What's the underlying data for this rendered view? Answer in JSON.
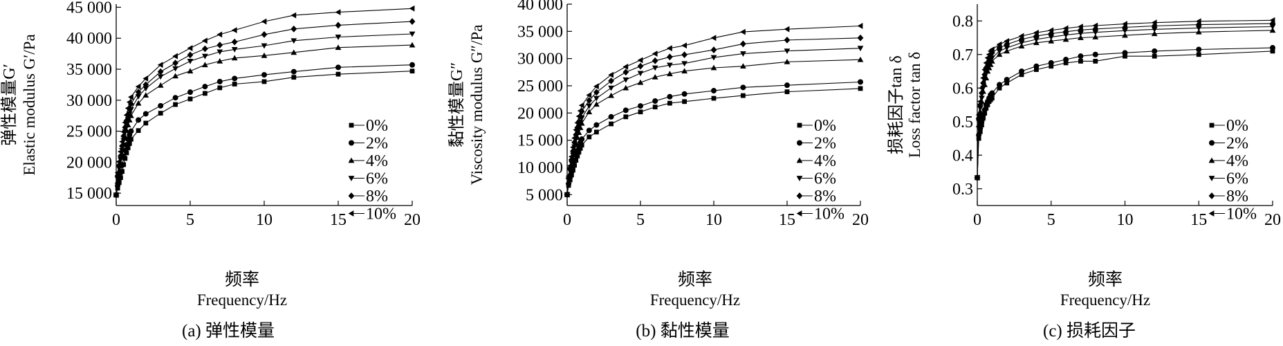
{
  "legend_labels": [
    "0%",
    "2%",
    "4%",
    "6%",
    "8%",
    "10%"
  ],
  "marker_names": [
    "square",
    "circle",
    "triangle-up",
    "triangle-down",
    "diamond",
    "triangle-left"
  ],
  "x_ticks": [
    0,
    5,
    10,
    15,
    20
  ],
  "chart_data": [
    {
      "type": "line",
      "panel_label": "(a) 弹性模量",
      "ylabel_cn": "弹性模量G′",
      "ylabel_en": "Elastic modulus G′/Pa",
      "xlabel_cn": "频率",
      "xlabel_en": "Frequency/Hz",
      "xlim": [
        0,
        20
      ],
      "ylim": [
        13000,
        45500
      ],
      "y_ticks": [
        15000,
        20000,
        25000,
        30000,
        35000,
        40000,
        45000
      ],
      "y_tick_labels": [
        "15 000",
        "20 000",
        "25 000",
        "30 000",
        "35 000",
        "40 000",
        "45 000"
      ],
      "legend_position": "lower-right",
      "x": [
        0,
        0.1,
        0.2,
        0.3,
        0.4,
        0.5,
        0.6,
        0.7,
        0.8,
        0.9,
        1,
        1.5,
        2,
        3,
        4,
        5,
        6,
        7,
        8,
        10,
        12,
        15,
        20
      ],
      "series": [
        {
          "name": "0%",
          "values": [
            14700,
            15800,
            16700,
            17500,
            18500,
            19600,
            20600,
            21500,
            22300,
            23000,
            23700,
            25100,
            26300,
            27900,
            29300,
            30200,
            31100,
            32000,
            32600,
            33000,
            33700,
            34200,
            34700
          ]
        },
        {
          "name": "2%",
          "values": [
            14700,
            16200,
            17300,
            18300,
            19500,
            20800,
            21900,
            22800,
            23700,
            24400,
            25000,
            26800,
            27800,
            29100,
            30400,
            31300,
            32200,
            33000,
            33500,
            34100,
            34600,
            35300,
            35700
          ]
        },
        {
          "name": "4%",
          "values": [
            14700,
            16900,
            18500,
            19900,
            21300,
            22800,
            24100,
            25100,
            26000,
            26800,
            27500,
            29500,
            30800,
            32400,
            33900,
            34700,
            35700,
            36300,
            36800,
            37200,
            37700,
            38500,
            38900
          ]
        },
        {
          "name": "6%",
          "values": [
            14700,
            17300,
            19000,
            20400,
            21900,
            23500,
            24900,
            26000,
            26900,
            27800,
            28500,
            30600,
            31900,
            33800,
            35100,
            36300,
            37100,
            37800,
            38200,
            38800,
            39600,
            40200,
            40700
          ]
        },
        {
          "name": "8%",
          "values": [
            14700,
            17800,
            19500,
            21000,
            22600,
            24200,
            25600,
            26700,
            27700,
            28600,
            29400,
            31300,
            32500,
            34600,
            36000,
            37300,
            38300,
            38900,
            39400,
            40600,
            41500,
            42100,
            42700
          ]
        },
        {
          "name": "10%",
          "values": [
            14700,
            18300,
            20100,
            21700,
            23300,
            24900,
            26400,
            27600,
            28700,
            29700,
            30500,
            32200,
            33500,
            35700,
            37100,
            38400,
            39600,
            40600,
            41300,
            42700,
            43700,
            44200,
            44800
          ]
        }
      ]
    },
    {
      "type": "line",
      "panel_label": "(b) 黏性模量",
      "ylabel_cn": "黏性模量G″",
      "ylabel_en": "Viscosity modulus G″/Pa",
      "xlabel_cn": "频率",
      "xlabel_en": "Frequency/Hz",
      "xlim": [
        0,
        20
      ],
      "ylim": [
        3000,
        40000
      ],
      "y_ticks": [
        5000,
        10000,
        15000,
        20000,
        25000,
        30000,
        35000,
        40000
      ],
      "y_tick_labels": [
        "5 000",
        "10 000",
        "15 000",
        "20 000",
        "25 000",
        "30 000",
        "35 000",
        "40 000"
      ],
      "legend_position": "lower-right",
      "x": [
        0,
        0.1,
        0.2,
        0.3,
        0.4,
        0.5,
        0.6,
        0.7,
        0.8,
        0.9,
        1,
        1.5,
        2,
        3,
        4,
        5,
        6,
        7,
        8,
        10,
        12,
        15,
        20
      ],
      "series": [
        {
          "name": "0%",
          "values": [
            5000,
            6700,
            7700,
            8600,
            9500,
            10400,
            11300,
            12100,
            12800,
            13500,
            14100,
            15600,
            16500,
            18000,
            19300,
            20200,
            21100,
            21800,
            22100,
            22700,
            23200,
            23900,
            24500
          ]
        },
        {
          "name": "2%",
          "values": [
            5000,
            7000,
            8200,
            9200,
            10200,
            11300,
            12300,
            13100,
            13900,
            14600,
            15200,
            16800,
            17800,
            19300,
            20500,
            21300,
            22200,
            23000,
            23500,
            24100,
            24700,
            25100,
            25700
          ]
        },
        {
          "name": "4%",
          "values": [
            5000,
            7400,
            8900,
            10300,
            11700,
            13100,
            14400,
            15500,
            16400,
            17300,
            18100,
            20200,
            21600,
            23200,
            24600,
            25600,
            26600,
            27200,
            27700,
            28300,
            28600,
            29400,
            29800
          ]
        },
        {
          "name": "6%",
          "values": [
            5000,
            7700,
            9300,
            10800,
            12300,
            13800,
            15200,
            16400,
            17400,
            18300,
            19100,
            21300,
            22700,
            24600,
            26100,
            27300,
            28300,
            28800,
            29100,
            30200,
            30900,
            31400,
            31900
          ]
        },
        {
          "name": "8%",
          "values": [
            5000,
            8000,
            9800,
            11400,
            13000,
            14600,
            16000,
            17300,
            18400,
            19400,
            20300,
            22300,
            23800,
            25900,
            27500,
            28600,
            29600,
            30300,
            30700,
            31600,
            32700,
            33400,
            33800
          ]
        },
        {
          "name": "10%",
          "values": [
            5000,
            8400,
            10300,
            12000,
            13700,
            15400,
            16900,
            18200,
            19400,
            20400,
            21400,
            23300,
            24900,
            27000,
            28500,
            29700,
            30900,
            31900,
            32400,
            33800,
            34900,
            35400,
            36000
          ]
        }
      ]
    },
    {
      "type": "line",
      "panel_label": "(c) 损耗因子",
      "ylabel_cn": "损耗因子tan δ",
      "ylabel_en": "Loss factor tan δ",
      "xlabel_cn": "频率",
      "xlabel_en": "Frequency/Hz",
      "xlim": [
        0,
        20
      ],
      "ylim": [
        0.25,
        0.85
      ],
      "y_ticks": [
        0.3,
        0.4,
        0.5,
        0.6,
        0.7,
        0.8
      ],
      "y_tick_labels": [
        "0.3",
        "0.4",
        "0.5",
        "0.6",
        "0.7",
        "0.8"
      ],
      "legend_position": "lower-right",
      "x": [
        0,
        0.1,
        0.2,
        0.3,
        0.4,
        0.5,
        0.6,
        0.7,
        0.8,
        0.9,
        1,
        1.5,
        2,
        3,
        4,
        5,
        6,
        7,
        8,
        10,
        12,
        15,
        20
      ],
      "series": [
        {
          "name": "0%",
          "values": [
            0.333,
            0.45,
            0.47,
            0.49,
            0.51,
            0.525,
            0.54,
            0.55,
            0.56,
            0.565,
            0.57,
            0.6,
            0.615,
            0.64,
            0.655,
            0.665,
            0.675,
            0.68,
            0.68,
            0.695,
            0.695,
            0.7,
            0.71
          ]
        },
        {
          "name": "2%",
          "values": [
            0.333,
            0.46,
            0.48,
            0.5,
            0.52,
            0.535,
            0.55,
            0.56,
            0.57,
            0.58,
            0.585,
            0.61,
            0.625,
            0.65,
            0.665,
            0.675,
            0.685,
            0.695,
            0.7,
            0.705,
            0.71,
            0.715,
            0.72
          ]
        },
        {
          "name": "4%",
          "values": [
            0.333,
            0.49,
            0.53,
            0.56,
            0.59,
            0.61,
            0.63,
            0.65,
            0.66,
            0.67,
            0.68,
            0.7,
            0.71,
            0.725,
            0.735,
            0.74,
            0.745,
            0.75,
            0.752,
            0.757,
            0.762,
            0.767,
            0.772
          ]
        },
        {
          "name": "6%",
          "values": [
            0.333,
            0.5,
            0.54,
            0.57,
            0.6,
            0.625,
            0.645,
            0.66,
            0.675,
            0.685,
            0.69,
            0.71,
            0.72,
            0.735,
            0.745,
            0.752,
            0.758,
            0.763,
            0.766,
            0.771,
            0.775,
            0.779,
            0.783
          ]
        },
        {
          "name": "8%",
          "values": [
            0.333,
            0.51,
            0.55,
            0.585,
            0.615,
            0.64,
            0.66,
            0.675,
            0.69,
            0.7,
            0.705,
            0.72,
            0.73,
            0.745,
            0.755,
            0.762,
            0.768,
            0.773,
            0.776,
            0.781,
            0.785,
            0.789,
            0.792
          ]
        },
        {
          "name": "10%",
          "values": [
            0.333,
            0.52,
            0.56,
            0.6,
            0.63,
            0.655,
            0.675,
            0.69,
            0.7,
            0.71,
            0.715,
            0.73,
            0.74,
            0.755,
            0.765,
            0.772,
            0.778,
            0.783,
            0.786,
            0.791,
            0.795,
            0.799,
            0.802
          ]
        }
      ]
    }
  ]
}
